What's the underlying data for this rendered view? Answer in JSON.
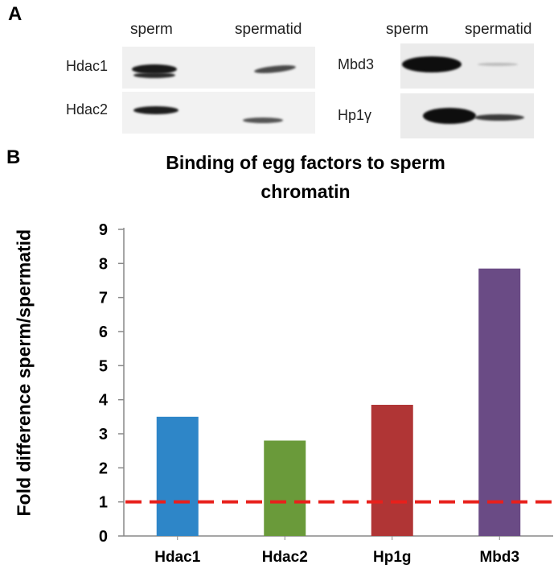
{
  "panel_a": {
    "letter": "A",
    "left_blot": {
      "lanes": [
        "sperm",
        "spermatid"
      ],
      "rows": [
        "Hdac1",
        "Hdac2"
      ]
    },
    "right_blot": {
      "lanes": [
        "sperm",
        "spermatid"
      ],
      "rows": [
        "Mbd3",
        "Hp1γ"
      ]
    }
  },
  "panel_b": {
    "letter": "B"
  },
  "chart_data": {
    "type": "bar",
    "title_lines": [
      "Binding of egg factors to sperm",
      "chromatin"
    ],
    "categories": [
      "Hdac1",
      "Hdac2",
      "Hp1g",
      "Mbd3"
    ],
    "values": [
      3.5,
      2.8,
      3.85,
      7.85
    ],
    "colors": [
      "#2e86c8",
      "#6a9a3a",
      "#b03535",
      "#6a4b85"
    ],
    "xlabel": "",
    "ylabel": "Fold difference sperm/spermatid",
    "ylim": [
      0,
      9
    ],
    "yticks": [
      "0",
      "1",
      "2",
      "3",
      "4",
      "5",
      "6",
      "7",
      "8",
      "9"
    ],
    "reference_line": {
      "value": 1,
      "color": "#e8201c",
      "style": "dashed"
    },
    "grid": false,
    "legend": "none"
  }
}
